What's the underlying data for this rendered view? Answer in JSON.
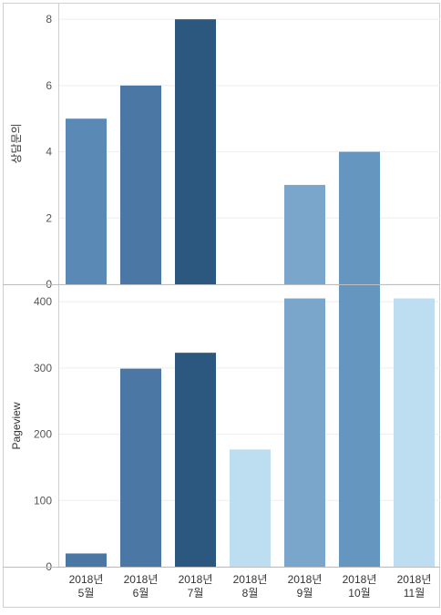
{
  "chart_data": [
    {
      "type": "bar",
      "ylabel": "상담문의",
      "categories": [
        [
          "2018년",
          "5월"
        ],
        [
          "2018년",
          "6월"
        ],
        [
          "2018년",
          "7월"
        ],
        [
          "2018년",
          "8월"
        ],
        [
          "2018년",
          "9월"
        ],
        [
          "2018년",
          "10월"
        ],
        [
          "2018년",
          "11월"
        ]
      ],
      "values": [
        5,
        6,
        8,
        0,
        3,
        4,
        0
      ],
      "ylim": [
        0,
        8.5
      ],
      "yticks": [
        "0",
        "2",
        "4",
        "6",
        "8"
      ],
      "colors": [
        "#5b89b5",
        "#4a77a4",
        "#2c577f",
        "#bddef0",
        "#7aa6cb",
        "#6596bf",
        "#bddef0"
      ],
      "grid": true
    },
    {
      "type": "bar",
      "ylabel": "Pageview",
      "categories": [
        [
          "2018년",
          "5월"
        ],
        [
          "2018년",
          "6월"
        ],
        [
          "2018년",
          "7월"
        ],
        [
          "2018년",
          "8월"
        ],
        [
          "2018년",
          "9월"
        ],
        [
          "2018년",
          "10월"
        ],
        [
          "2018년",
          "11월"
        ]
      ],
      "values": [
        20,
        299,
        323,
        177,
        405,
        426,
        405
      ],
      "ylim": [
        0,
        425
      ],
      "yticks": [
        "0",
        "100",
        "200",
        "300",
        "400"
      ],
      "colors": [
        "#4a77a4",
        "#4a77a4",
        "#2c577f",
        "#bddef0",
        "#7aa6cb",
        "#6596bf",
        "#bddef0"
      ],
      "grid": true
    }
  ]
}
